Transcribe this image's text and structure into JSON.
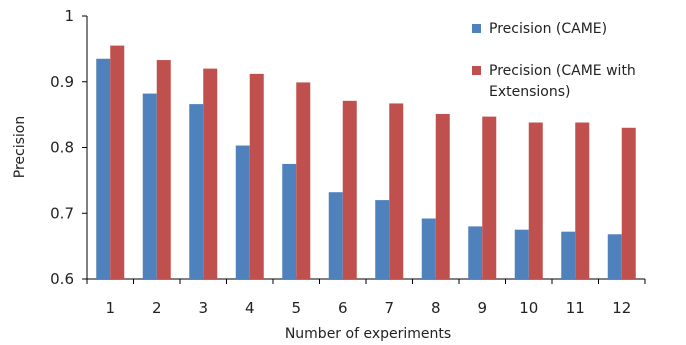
{
  "chart_data": {
    "type": "bar",
    "title": "",
    "xlabel": "Number of experiments",
    "ylabel": "Precision",
    "ylim": [
      0.6,
      1.0
    ],
    "yticks": [
      "0.6",
      "0.7",
      "0.8",
      "0.9",
      "1"
    ],
    "grid": false,
    "legend_position": "top-right",
    "categories": [
      "1",
      "2",
      "3",
      "4",
      "5",
      "6",
      "7",
      "8",
      "9",
      "10",
      "11",
      "12"
    ],
    "series": [
      {
        "name": "Precision (CAME)",
        "color": "#4f81bd",
        "values": [
          0.935,
          0.882,
          0.866,
          0.803,
          0.775,
          0.732,
          0.72,
          0.692,
          0.68,
          0.675,
          0.672,
          0.668
        ]
      },
      {
        "name": "Precision (CAME with Extensions)",
        "legend_lines": [
          "Precision (CAME with",
          "Extensions)"
        ],
        "color": "#c0504d",
        "values": [
          0.955,
          0.933,
          0.92,
          0.912,
          0.899,
          0.871,
          0.867,
          0.851,
          0.847,
          0.838,
          0.838,
          0.83
        ]
      }
    ]
  }
}
